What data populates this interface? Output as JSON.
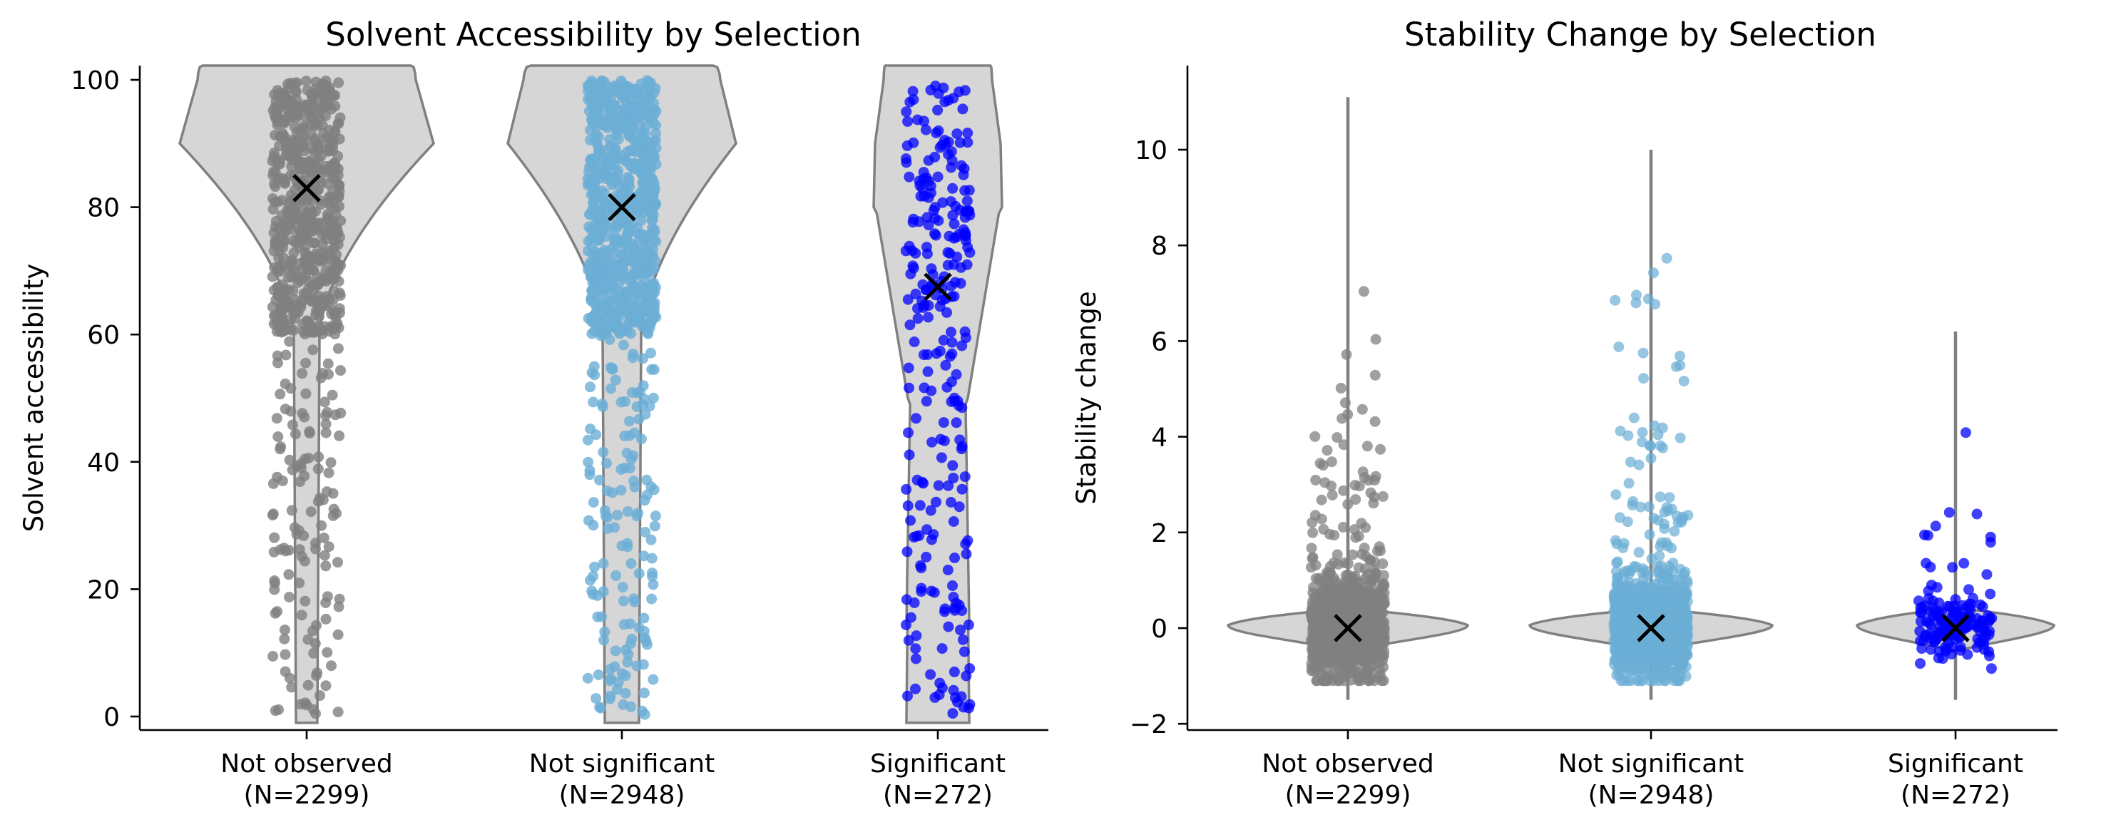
{
  "chart_data": [
    {
      "type": "violin+strip",
      "title": "Solvent Accessibility by Selection",
      "xlabel": "",
      "ylabel": "Solvent accessibility",
      "ylim": [
        -2,
        102
      ],
      "yticks": [
        "0",
        "20",
        "40",
        "60",
        "80",
        "100"
      ],
      "grid": false,
      "categories": [
        {
          "name": "Not observed",
          "n_label": "(N=2299)",
          "n": 2299,
          "color": "#808080",
          "mean": 83.0
        },
        {
          "name": "Not significant",
          "n_label": "(N=2948)",
          "n": 2948,
          "color": "#6baed6",
          "mean": 80.0
        },
        {
          "name": "Significant",
          "n_label": "(N=272)",
          "n": 272,
          "color": "#0000ff",
          "mean": 67.5
        }
      ],
      "mean_marker": "X"
    },
    {
      "type": "violin+strip",
      "title": "Stability Change by Selection",
      "xlabel": "",
      "ylabel": "Stability change",
      "ylim": [
        -2.1,
        11.8
      ],
      "yticks": [
        "−2",
        "0",
        "2",
        "4",
        "6",
        "8",
        "10"
      ],
      "grid": false,
      "categories": [
        {
          "name": "Not observed",
          "n_label": "(N=2299)",
          "n": 2299,
          "color": "#808080",
          "mean": 0.0,
          "max": 11.1,
          "min": -1.5
        },
        {
          "name": "Not significant",
          "n_label": "(N=2948)",
          "n": 2948,
          "color": "#6baed6",
          "mean": 0.0,
          "max": 10.0,
          "min": -1.5
        },
        {
          "name": "Significant",
          "n_label": "(N=272)",
          "n": 272,
          "color": "#0000ff",
          "mean": 0.0,
          "max": 6.2,
          "min": -1.5
        }
      ],
      "mean_marker": "X"
    }
  ]
}
